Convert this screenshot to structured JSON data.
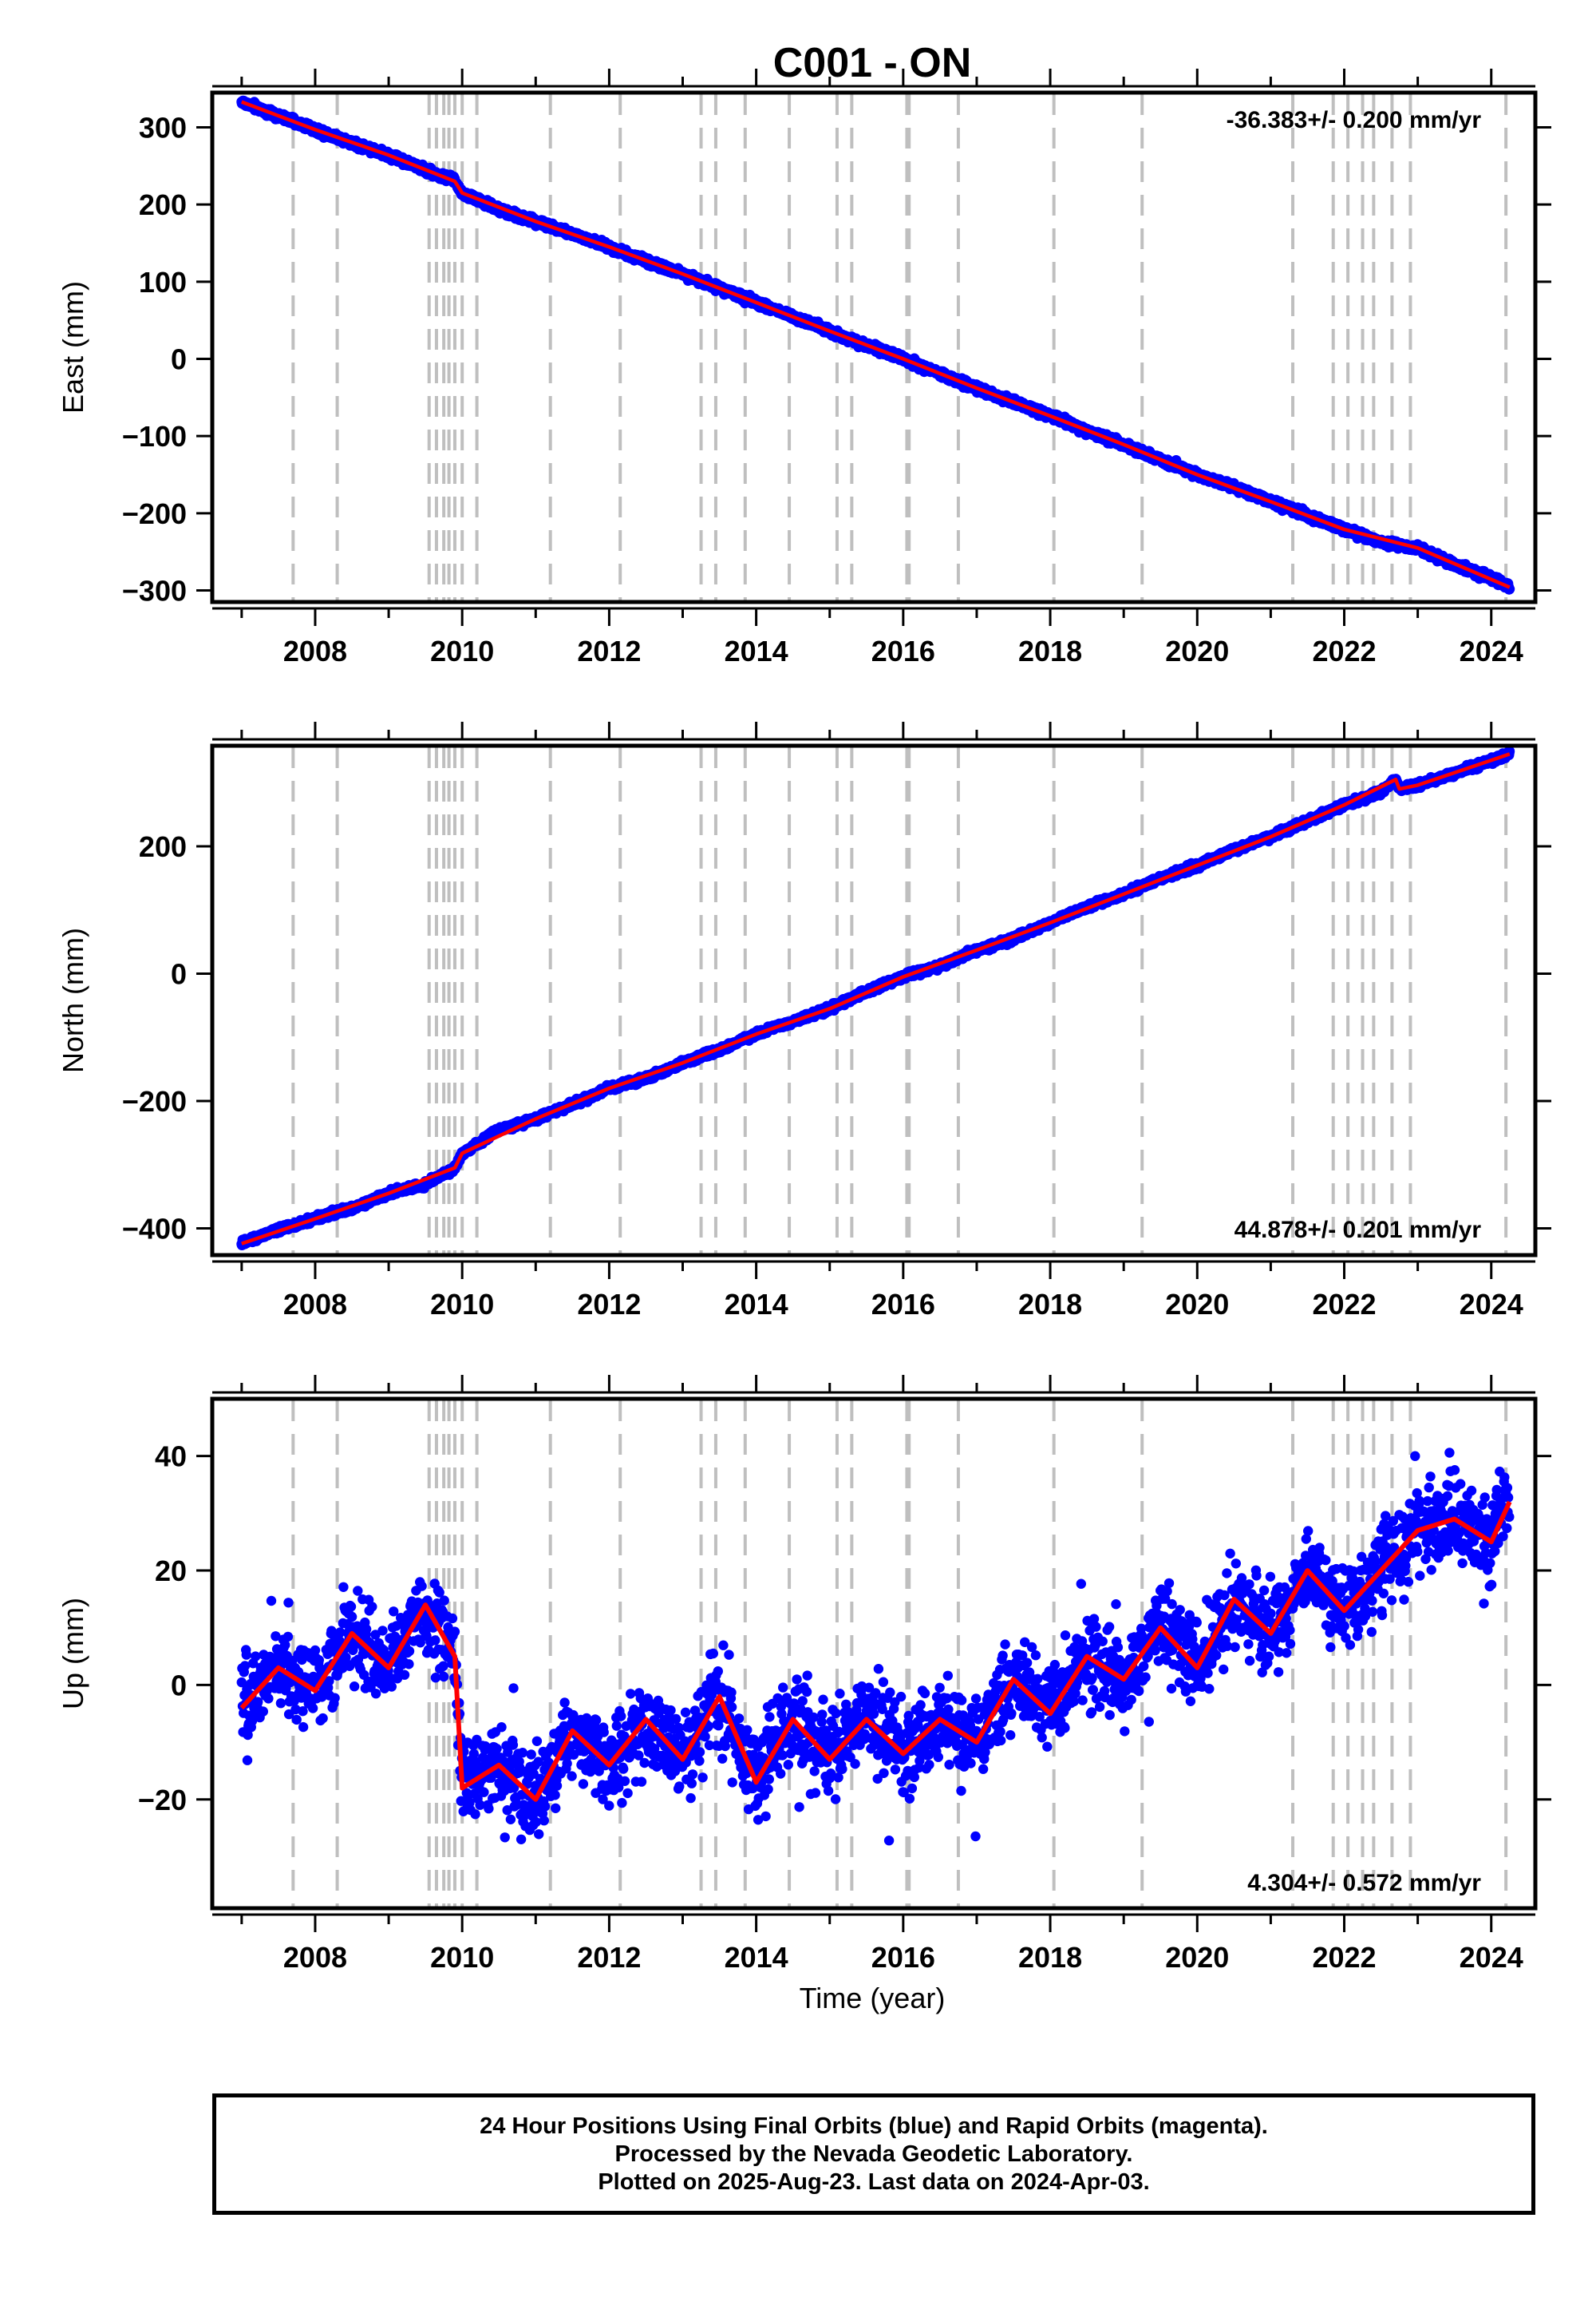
{
  "chart_data": [
    {
      "type": "scatter",
      "title": "C001 - ON",
      "ylabel": "East (mm)",
      "xlabel": "",
      "rate_label": "-36.383+/- 0.200 mm/yr",
      "rate_position": "top-right",
      "xlim": [
        2006.6,
        2024.6
      ],
      "ylim": [
        -315,
        345
      ],
      "x_ticks": [
        2008,
        2010,
        2012,
        2014,
        2016,
        2018,
        2020,
        2022,
        2024
      ],
      "y_ticks": [
        300,
        200,
        100,
        0,
        -100,
        -200,
        -300
      ],
      "series": [
        {
          "name": "Final Orbits (blue)",
          "type": "scatter",
          "color": "#0000ff",
          "x": [
            2007.0,
            2007.5,
            2008.0,
            2008.5,
            2009.0,
            2009.5,
            2009.9,
            2010.0,
            2010.5,
            2011.0,
            2011.5,
            2012.0,
            2012.5,
            2013.0,
            2013.5,
            2014.0,
            2014.5,
            2015.0,
            2015.5,
            2016.0,
            2016.5,
            2017.0,
            2017.5,
            2018.0,
            2018.5,
            2019.0,
            2019.5,
            2020.0,
            2020.5,
            2021.0,
            2021.5,
            2022.0,
            2022.5,
            2023.0,
            2023.5,
            2024.0,
            2024.25
          ],
          "y": [
            333,
            315,
            297,
            280,
            264,
            245,
            230,
            215,
            193,
            178,
            162,
            145,
            127,
            110,
            92,
            73,
            55,
            36,
            17,
            0,
            -20,
            -38,
            -56,
            -74,
            -93,
            -111,
            -130,
            -150,
            -166,
            -185,
            -203,
            -221,
            -238,
            -245,
            -266,
            -284,
            -296
          ]
        },
        {
          "name": "Trend model",
          "type": "line",
          "color": "#ff0000",
          "x": [
            2007.0,
            2008.0,
            2009.0,
            2009.9,
            2010.0,
            2011.0,
            2012.0,
            2013.0,
            2014.0,
            2015.0,
            2016.0,
            2017.0,
            2018.0,
            2019.0,
            2020.0,
            2021.0,
            2022.0,
            2023.0,
            2024.25
          ],
          "y": [
            333,
            297,
            264,
            230,
            215,
            178,
            145,
            110,
            73,
            36,
            0,
            -38,
            -74,
            -111,
            -150,
            -185,
            -221,
            -245,
            -296
          ]
        }
      ]
    },
    {
      "type": "scatter",
      "title": "",
      "ylabel": "North (mm)",
      "xlabel": "",
      "rate_label": "44.878+/- 0.201 mm/yr",
      "rate_position": "bottom-right",
      "xlim": [
        2006.6,
        2024.6
      ],
      "ylim": [
        -442,
        358
      ],
      "x_ticks": [
        2008,
        2010,
        2012,
        2014,
        2016,
        2018,
        2020,
        2022,
        2024
      ],
      "y_ticks": [
        200,
        0,
        -200,
        -400
      ],
      "series": [
        {
          "name": "Final Orbits (blue)",
          "type": "scatter",
          "color": "#0000ff",
          "x": [
            2007.0,
            2007.5,
            2008.0,
            2008.5,
            2009.0,
            2009.5,
            2009.9,
            2010.0,
            2010.5,
            2011.0,
            2011.5,
            2012.0,
            2012.5,
            2013.0,
            2013.5,
            2014.0,
            2014.5,
            2015.0,
            2015.5,
            2016.0,
            2016.5,
            2017.0,
            2017.5,
            2018.0,
            2018.5,
            2019.0,
            2019.5,
            2020.0,
            2020.5,
            2021.0,
            2021.5,
            2022.0,
            2022.5,
            2022.7,
            2022.75,
            2023.0,
            2023.5,
            2024.0,
            2024.25
          ],
          "y": [
            -424,
            -402,
            -385,
            -368,
            -345,
            -330,
            -305,
            -282,
            -245,
            -228,
            -205,
            -180,
            -165,
            -140,
            -120,
            -95,
            -75,
            -55,
            -28,
            -5,
            12,
            37,
            55,
            80,
            105,
            125,
            150,
            170,
            195,
            215,
            240,
            265,
            285,
            305,
            290,
            296,
            315,
            335,
            345
          ]
        },
        {
          "name": "Trend model",
          "type": "line",
          "color": "#ff0000",
          "x": [
            2007.0,
            2008.0,
            2009.0,
            2009.9,
            2010.0,
            2011.0,
            2012.0,
            2013.0,
            2014.0,
            2015.0,
            2016.0,
            2017.0,
            2018.0,
            2019.0,
            2020.0,
            2021.0,
            2022.0,
            2022.7,
            2022.75,
            2023.0,
            2024.0,
            2024.25
          ],
          "y": [
            -424,
            -385,
            -345,
            -305,
            -282,
            -228,
            -180,
            -140,
            -95,
            -55,
            -5,
            37,
            80,
            125,
            170,
            215,
            265,
            305,
            290,
            296,
            335,
            345
          ]
        }
      ]
    },
    {
      "type": "scatter",
      "title": "",
      "ylabel": "Up (mm)",
      "xlabel": "Time (year)",
      "rate_label": "4.304+/- 0.572 mm/yr",
      "rate_position": "bottom-right",
      "xlim": [
        2006.6,
        2024.6
      ],
      "ylim": [
        -39,
        50
      ],
      "x_ticks": [
        2008,
        2010,
        2012,
        2014,
        2016,
        2018,
        2020,
        2022,
        2024
      ],
      "y_ticks": [
        40,
        20,
        0,
        -20
      ],
      "series": [
        {
          "name": "Final Orbits (blue)",
          "type": "scatter",
          "color": "#0000ff",
          "x": [
            2007.0,
            2007.5,
            2008.0,
            2008.5,
            2009.0,
            2009.5,
            2009.9,
            2010.0,
            2010.5,
            2011.0,
            2011.5,
            2012.0,
            2012.5,
            2013.0,
            2013.5,
            2014.0,
            2014.5,
            2015.0,
            2015.5,
            2016.0,
            2016.5,
            2017.0,
            2017.5,
            2018.0,
            2018.5,
            2019.0,
            2019.5,
            2020.0,
            2020.5,
            2021.0,
            2021.5,
            2022.0,
            2022.5,
            2023.0,
            2023.5,
            2024.0,
            2024.25
          ],
          "y": [
            -4,
            3,
            -1,
            9,
            3,
            14,
            5,
            -18,
            -14,
            -20,
            -8,
            -14,
            -6,
            -13,
            -2,
            -17,
            -6,
            -13,
            -6,
            -12,
            -6,
            -10,
            1,
            -5,
            5,
            1,
            10,
            3,
            15,
            9,
            20,
            13,
            20,
            27,
            29,
            25,
            32
          ]
        },
        {
          "name": "Trend model",
          "type": "line",
          "color": "#ff0000",
          "x": [
            2007.0,
            2007.5,
            2008.0,
            2008.5,
            2009.0,
            2009.5,
            2009.9,
            2010.0,
            2010.5,
            2011.0,
            2011.5,
            2012.0,
            2012.5,
            2013.0,
            2013.5,
            2014.0,
            2014.5,
            2015.0,
            2015.5,
            2016.0,
            2016.5,
            2017.0,
            2017.5,
            2018.0,
            2018.5,
            2019.0,
            2019.5,
            2020.0,
            2020.5,
            2021.0,
            2021.5,
            2022.0,
            2022.5,
            2023.0,
            2023.5,
            2024.0,
            2024.25
          ],
          "y": [
            -4,
            3,
            -1,
            9,
            3,
            14,
            5,
            -18,
            -14,
            -20,
            -8,
            -14,
            -6,
            -13,
            -2,
            -17,
            -6,
            -13,
            -6,
            -12,
            -6,
            -10,
            1,
            -5,
            5,
            1,
            10,
            3,
            15,
            9,
            20,
            13,
            20,
            27,
            29,
            25,
            32
          ]
        }
      ]
    }
  ],
  "event_lines": [
    2007.7,
    2008.3,
    2009.55,
    2009.65,
    2009.75,
    2009.82,
    2009.9,
    2010.0,
    2010.2,
    2011.2,
    2012.15,
    2013.25,
    2013.45,
    2013.85,
    2014.45,
    2015.1,
    2015.3,
    2016.05,
    2016.08,
    2016.75,
    2018.05,
    2019.25,
    2021.3,
    2021.85,
    2022.05,
    2022.25,
    2022.4,
    2022.65,
    2022.9,
    2024.2
  ],
  "event_line_color": "#bfbfbf",
  "caption": {
    "line1": "24 Hour Positions Using Final Orbits (blue) and Rapid Orbits (magenta).",
    "line2": "Processed by the Nevada Geodetic Laboratory.",
    "line3": "Plotted on 2025-Aug-23. Last data on 2024-Apr-03."
  }
}
